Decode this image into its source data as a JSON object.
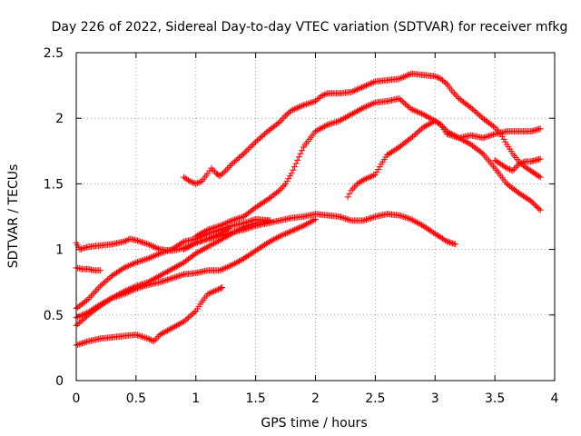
{
  "chart_data": {
    "type": "scatter",
    "title": "Day 226 of 2022, Sidereal Day-to-day VTEC variation (SDTVAR) for receiver mfkg",
    "xlabel": "GPS time / hours",
    "ylabel": "SDTVAR / TECUs",
    "xlim": [
      0,
      4
    ],
    "ylim": [
      0,
      2.5
    ],
    "xticks": [
      "0",
      "0.5",
      "1",
      "1.5",
      "2",
      "2.5",
      "3",
      "3.5",
      "4"
    ],
    "yticks": [
      "0",
      "0.5",
      "1",
      "1.5",
      "2",
      "2.5"
    ],
    "grid": true,
    "marker": "+",
    "color": "#ff0000",
    "series": [
      {
        "name": "s1",
        "points": [
          [
            0.0,
            1.05
          ],
          [
            0.03,
            1.0
          ],
          [
            0.1,
            1.02
          ],
          [
            0.2,
            1.03
          ],
          [
            0.3,
            1.04
          ],
          [
            0.4,
            1.06
          ],
          [
            0.45,
            1.08
          ],
          [
            0.5,
            1.07
          ],
          [
            0.6,
            1.04
          ],
          [
            0.7,
            1.0
          ],
          [
            0.8,
            0.99
          ],
          [
            0.9,
            1.01
          ],
          [
            1.0,
            1.05
          ],
          [
            1.1,
            1.08
          ],
          [
            1.2,
            1.12
          ],
          [
            1.27,
            1.16
          ]
        ]
      },
      {
        "name": "s2",
        "points": [
          [
            0.0,
            0.86
          ],
          [
            0.05,
            0.85
          ],
          [
            0.1,
            0.85
          ],
          [
            0.15,
            0.84
          ],
          [
            0.2,
            0.84
          ]
        ]
      },
      {
        "name": "s3",
        "points": [
          [
            0.0,
            0.55
          ],
          [
            0.1,
            0.62
          ],
          [
            0.2,
            0.72
          ],
          [
            0.3,
            0.8
          ],
          [
            0.4,
            0.86
          ],
          [
            0.5,
            0.9
          ],
          [
            0.6,
            0.93
          ],
          [
            0.7,
            0.97
          ],
          [
            0.8,
            1.0
          ],
          [
            0.9,
            1.06
          ],
          [
            1.0,
            1.08
          ],
          [
            1.1,
            1.12
          ],
          [
            1.2,
            1.15
          ],
          [
            1.3,
            1.18
          ],
          [
            1.4,
            1.2
          ],
          [
            1.5,
            1.23
          ],
          [
            1.62,
            1.22
          ]
        ]
      },
      {
        "name": "s4",
        "points": [
          [
            0.0,
            0.48
          ],
          [
            0.1,
            0.52
          ],
          [
            0.2,
            0.58
          ],
          [
            0.3,
            0.63
          ],
          [
            0.4,
            0.68
          ],
          [
            0.5,
            0.72
          ],
          [
            0.6,
            0.75
          ],
          [
            0.7,
            0.8
          ],
          [
            0.8,
            0.85
          ],
          [
            0.9,
            0.9
          ],
          [
            1.0,
            0.97
          ],
          [
            1.1,
            1.02
          ],
          [
            1.2,
            1.07
          ],
          [
            1.3,
            1.12
          ],
          [
            1.4,
            1.17
          ],
          [
            1.5,
            1.2
          ],
          [
            1.62,
            1.22
          ]
        ]
      },
      {
        "name": "s5",
        "points": [
          [
            0.0,
            0.42
          ],
          [
            0.1,
            0.5
          ],
          [
            0.2,
            0.57
          ],
          [
            0.3,
            0.63
          ],
          [
            0.4,
            0.66
          ],
          [
            0.5,
            0.7
          ],
          [
            0.6,
            0.73
          ],
          [
            0.7,
            0.75
          ],
          [
            0.8,
            0.78
          ],
          [
            0.9,
            0.81
          ],
          [
            1.0,
            0.82
          ],
          [
            1.1,
            0.84
          ],
          [
            1.2,
            0.84
          ],
          [
            1.3,
            0.88
          ],
          [
            1.4,
            0.93
          ],
          [
            1.5,
            0.99
          ],
          [
            1.6,
            1.05
          ],
          [
            1.7,
            1.1
          ],
          [
            1.8,
            1.14
          ],
          [
            1.9,
            1.18
          ],
          [
            2.0,
            1.23
          ]
        ]
      },
      {
        "name": "s6",
        "points": [
          [
            0.0,
            0.27
          ],
          [
            0.1,
            0.3
          ],
          [
            0.2,
            0.32
          ],
          [
            0.3,
            0.33
          ],
          [
            0.4,
            0.34
          ],
          [
            0.5,
            0.35
          ],
          [
            0.6,
            0.32
          ],
          [
            0.65,
            0.3
          ],
          [
            0.7,
            0.35
          ],
          [
            0.8,
            0.4
          ],
          [
            0.9,
            0.45
          ],
          [
            1.0,
            0.53
          ],
          [
            1.05,
            0.6
          ],
          [
            1.1,
            0.66
          ],
          [
            1.2,
            0.7
          ],
          [
            1.22,
            0.71
          ]
        ]
      },
      {
        "name": "s7",
        "points": [
          [
            0.9,
            1.55
          ],
          [
            0.95,
            1.52
          ],
          [
            1.0,
            1.5
          ],
          [
            1.05,
            1.52
          ],
          [
            1.1,
            1.58
          ],
          [
            1.13,
            1.62
          ],
          [
            1.17,
            1.58
          ],
          [
            1.2,
            1.56
          ],
          [
            1.25,
            1.6
          ],
          [
            1.3,
            1.65
          ],
          [
            1.4,
            1.73
          ],
          [
            1.5,
            1.82
          ],
          [
            1.6,
            1.9
          ],
          [
            1.7,
            1.97
          ],
          [
            1.75,
            2.02
          ],
          [
            1.8,
            2.06
          ],
          [
            1.9,
            2.1
          ],
          [
            2.0,
            2.13
          ],
          [
            2.05,
            2.17
          ],
          [
            2.1,
            2.19
          ],
          [
            2.2,
            2.19
          ],
          [
            2.3,
            2.2
          ],
          [
            2.4,
            2.24
          ],
          [
            2.5,
            2.28
          ],
          [
            2.6,
            2.29
          ],
          [
            2.7,
            2.3
          ],
          [
            2.8,
            2.34
          ],
          [
            2.9,
            2.33
          ],
          [
            3.0,
            2.32
          ],
          [
            3.05,
            2.3
          ],
          [
            3.1,
            2.26
          ],
          [
            3.15,
            2.2
          ],
          [
            3.2,
            2.15
          ],
          [
            3.3,
            2.08
          ],
          [
            3.4,
            2.0
          ],
          [
            3.5,
            1.93
          ],
          [
            3.55,
            1.88
          ],
          [
            3.6,
            1.8
          ],
          [
            3.65,
            1.73
          ],
          [
            3.7,
            1.67
          ],
          [
            3.75,
            1.63
          ],
          [
            3.8,
            1.6
          ],
          [
            3.88,
            1.55
          ]
        ]
      },
      {
        "name": "s8",
        "points": [
          [
            1.0,
            1.1
          ],
          [
            1.1,
            1.15
          ],
          [
            1.2,
            1.18
          ],
          [
            1.3,
            1.22
          ],
          [
            1.4,
            1.25
          ],
          [
            1.5,
            1.32
          ],
          [
            1.6,
            1.38
          ],
          [
            1.7,
            1.45
          ],
          [
            1.75,
            1.5
          ],
          [
            1.8,
            1.58
          ],
          [
            1.85,
            1.68
          ],
          [
            1.9,
            1.78
          ],
          [
            2.0,
            1.9
          ],
          [
            2.1,
            1.95
          ],
          [
            2.2,
            1.98
          ],
          [
            2.3,
            2.03
          ],
          [
            2.4,
            2.08
          ],
          [
            2.5,
            2.12
          ],
          [
            2.6,
            2.13
          ],
          [
            2.7,
            2.15
          ],
          [
            2.8,
            2.07
          ],
          [
            2.9,
            2.03
          ],
          [
            3.0,
            1.98
          ],
          [
            3.05,
            1.95
          ],
          [
            3.1,
            1.9
          ],
          [
            3.2,
            1.85
          ],
          [
            3.3,
            1.8
          ],
          [
            3.4,
            1.73
          ],
          [
            3.5,
            1.62
          ],
          [
            3.6,
            1.5
          ],
          [
            3.7,
            1.43
          ],
          [
            3.8,
            1.37
          ],
          [
            3.88,
            1.3
          ]
        ]
      },
      {
        "name": "s9",
        "points": [
          [
            0.9,
            1.0
          ],
          [
            1.0,
            1.05
          ],
          [
            1.1,
            1.08
          ],
          [
            1.2,
            1.1
          ],
          [
            1.3,
            1.13
          ],
          [
            1.4,
            1.15
          ],
          [
            1.5,
            1.18
          ],
          [
            1.6,
            1.2
          ],
          [
            1.7,
            1.22
          ],
          [
            1.8,
            1.24
          ],
          [
            1.9,
            1.25
          ],
          [
            2.0,
            1.27
          ],
          [
            2.1,
            1.26
          ],
          [
            2.2,
            1.25
          ],
          [
            2.3,
            1.22
          ],
          [
            2.4,
            1.22
          ],
          [
            2.5,
            1.25
          ],
          [
            2.6,
            1.27
          ],
          [
            2.7,
            1.26
          ],
          [
            2.8,
            1.23
          ],
          [
            2.9,
            1.18
          ],
          [
            3.0,
            1.12
          ],
          [
            3.1,
            1.06
          ],
          [
            3.17,
            1.04
          ]
        ]
      },
      {
        "name": "s10",
        "points": [
          [
            2.27,
            1.4
          ],
          [
            2.3,
            1.45
          ],
          [
            2.35,
            1.5
          ],
          [
            2.4,
            1.53
          ],
          [
            2.5,
            1.57
          ],
          [
            2.55,
            1.65
          ],
          [
            2.6,
            1.72
          ],
          [
            2.65,
            1.75
          ],
          [
            2.7,
            1.78
          ],
          [
            2.8,
            1.85
          ],
          [
            2.9,
            1.93
          ],
          [
            3.0,
            1.98
          ],
          [
            3.05,
            1.95
          ],
          [
            3.1,
            1.88
          ],
          [
            3.2,
            1.85
          ],
          [
            3.3,
            1.87
          ],
          [
            3.4,
            1.85
          ],
          [
            3.5,
            1.88
          ],
          [
            3.6,
            1.9
          ],
          [
            3.7,
            1.9
          ],
          [
            3.8,
            1.9
          ],
          [
            3.88,
            1.92
          ]
        ]
      },
      {
        "name": "s11",
        "points": [
          [
            3.5,
            1.68
          ],
          [
            3.55,
            1.65
          ],
          [
            3.6,
            1.62
          ],
          [
            3.65,
            1.6
          ],
          [
            3.7,
            1.65
          ],
          [
            3.75,
            1.67
          ],
          [
            3.8,
            1.67
          ],
          [
            3.88,
            1.69
          ]
        ]
      }
    ]
  }
}
